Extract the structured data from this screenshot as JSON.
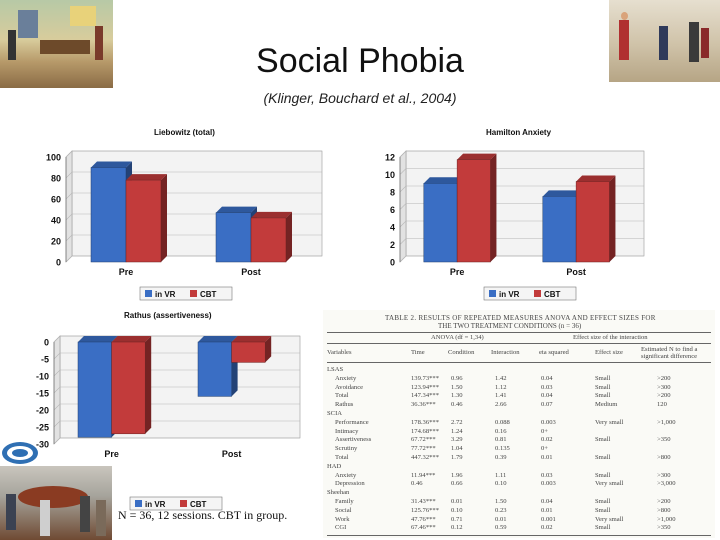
{
  "slide": {
    "title": "Social Phobia",
    "subtitle": "(Klinger, Bouchard et al., 2004)",
    "footnote": "N = 36, 12 sessions. CBT in group."
  },
  "colors": {
    "vr": "#3a6ec4",
    "cbt": "#c23b3b"
  },
  "chart_data": [
    {
      "type": "bar",
      "title": "Liebowitz (total)",
      "categories": [
        "Pre",
        "Post"
      ],
      "series": [
        {
          "name": "in VR",
          "values": [
            90,
            47
          ]
        },
        {
          "name": "CBT",
          "values": [
            78,
            42
          ]
        }
      ],
      "ylim": [
        0,
        100
      ],
      "yticks": [
        "0",
        "20",
        "40",
        "60",
        "80",
        "100"
      ],
      "legend": "bottom"
    },
    {
      "type": "bar",
      "title": "Hamilton Anxiety",
      "categories": [
        "Pre",
        "Post"
      ],
      "series": [
        {
          "name": "in VR",
          "values": [
            9,
            7.5
          ]
        },
        {
          "name": "CBT",
          "values": [
            11.7,
            9.2
          ]
        }
      ],
      "ylim": [
        0,
        12
      ],
      "yticks": [
        "0",
        "2",
        "4",
        "6",
        "8",
        "10",
        "12"
      ],
      "legend": "bottom"
    },
    {
      "type": "bar",
      "title": "Rathus (assertiveness)",
      "categories": [
        "Pre",
        "Post"
      ],
      "series": [
        {
          "name": "in VR",
          "values": [
            -28,
            -16
          ]
        },
        {
          "name": "CBT",
          "values": [
            -27,
            -6
          ]
        }
      ],
      "ylim": [
        -30,
        0
      ],
      "yticks": [
        "0",
        "-5",
        "-10",
        "-15",
        "-20",
        "-25",
        "-30"
      ],
      "legend": "bottom"
    }
  ],
  "table": {
    "caption": "TABLE 2. RESULTS OF REPEATED MEASURES ANOVA AND EFFECT SIZES FOR",
    "caption2": "THE TWO TREATMENT CONDITIONS (n = 36)",
    "group_headers": [
      "ANOVA (df = 1,34)",
      "Effect size of the interaction"
    ],
    "headers": [
      "Variables",
      "Time",
      "Condition",
      "Interaction",
      "eta squared",
      "Effect size",
      "Estimated N to find a significant difference"
    ],
    "rows": [
      [
        "LSAS",
        "",
        "",
        "",
        "",
        "",
        ""
      ],
      [
        "Anxiety",
        "139.73***",
        "0.96",
        "1.42",
        "0.04",
        "Small",
        ">200"
      ],
      [
        "Avoidance",
        "123.94***",
        "1.50",
        "1.12",
        "0.03",
        "Small",
        ">300"
      ],
      [
        "Total",
        "147.34***",
        "1.30",
        "1.41",
        "0.04",
        "Small",
        ">200"
      ],
      [
        "Rathus",
        "36.36***",
        "0.46",
        "2.66",
        "0.07",
        "Medium",
        "120"
      ],
      [
        "SCIA",
        "",
        "",
        "",
        "",
        "",
        ""
      ],
      [
        "Performance",
        "178.36***",
        "2.72",
        "0.088",
        "0.003",
        "Very small",
        ">1,000"
      ],
      [
        "Intimacy",
        "174.68***",
        "1.24",
        "0.16",
        "0+",
        "",
        ""
      ],
      [
        "Assertiveness",
        "67.72***",
        "3.29",
        "0.81",
        "0.02",
        "Small",
        ">350"
      ],
      [
        "Scrutiny",
        "77.72***",
        "1.04",
        "0.135",
        "0+",
        "",
        ""
      ],
      [
        "Total",
        "447.32***",
        "1.79",
        "0.39",
        "0.01",
        "Small",
        ">800"
      ],
      [
        "HAD",
        "",
        "",
        "",
        "",
        "",
        ""
      ],
      [
        "Anxiety",
        "11.94***",
        "1.96",
        "1.11",
        "0.03",
        "Small",
        ">300"
      ],
      [
        "Depression",
        "0.46",
        "0.66",
        "0.10",
        "0.003",
        "Very small",
        ">3,000"
      ],
      [
        "Sheehan",
        "",
        "",
        "",
        "",
        "",
        ""
      ],
      [
        "Family",
        "31.43***",
        "0.01",
        "1.50",
        "0.04",
        "Small",
        ">200"
      ],
      [
        "Social",
        "125.76***",
        "0.10",
        "0.23",
        "0.01",
        "Small",
        ">800"
      ],
      [
        "Work",
        "47.76***",
        "0.71",
        "0.01",
        "0.001",
        "Very small",
        ">1,000"
      ],
      [
        "CGI",
        "67.46***",
        "0.12",
        "0.59",
        "0.02",
        "Small",
        ">350"
      ]
    ]
  }
}
